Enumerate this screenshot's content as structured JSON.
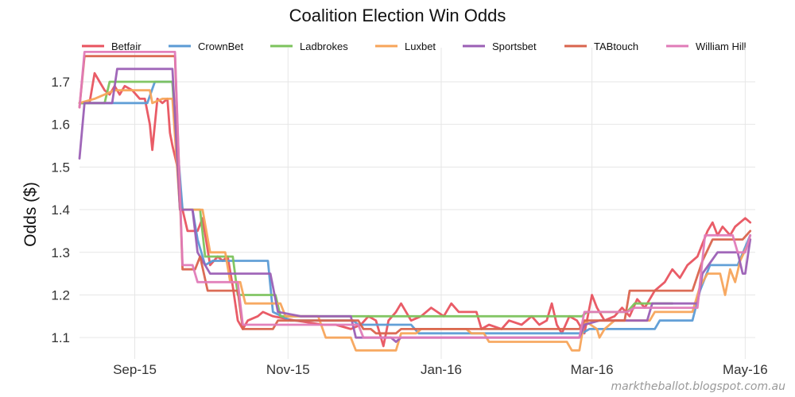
{
  "chart_data": {
    "type": "line",
    "title": "Coalition Election Win Odds",
    "xlabel": "",
    "ylabel": "Odds ($)",
    "credit": "marktheballot.blogspot.com.au",
    "x_range": [
      "2015-08-10",
      "2016-05-05"
    ],
    "ylim": [
      1.05,
      1.78
    ],
    "y_ticks": [
      1.1,
      1.2,
      1.3,
      1.4,
      1.5,
      1.6,
      1.7
    ],
    "x_ticks": [
      {
        "date": "2015-09-01",
        "label": "Sep-15"
      },
      {
        "date": "2015-11-01",
        "label": "Nov-15"
      },
      {
        "date": "2016-01-01",
        "label": "Jan-16"
      },
      {
        "date": "2016-03-01",
        "label": "Mar-16"
      },
      {
        "date": "2016-05-01",
        "label": "May-16"
      }
    ],
    "grid": true,
    "legend_position": "top",
    "series": [
      {
        "name": "Betfair",
        "color": "#e8535f",
        "points": [
          [
            "2015-08-10",
            1.65
          ],
          [
            "2015-08-14",
            1.65
          ],
          [
            "2015-08-16",
            1.72
          ],
          [
            "2015-08-18",
            1.7
          ],
          [
            "2015-08-20",
            1.68
          ],
          [
            "2015-08-22",
            1.67
          ],
          [
            "2015-08-24",
            1.69
          ],
          [
            "2015-08-26",
            1.67
          ],
          [
            "2015-08-28",
            1.69
          ],
          [
            "2015-08-31",
            1.68
          ],
          [
            "2015-09-03",
            1.66
          ],
          [
            "2015-09-05",
            1.66
          ],
          [
            "2015-09-07",
            1.6
          ],
          [
            "2015-09-08",
            1.54
          ],
          [
            "2015-09-10",
            1.66
          ],
          [
            "2015-09-12",
            1.65
          ],
          [
            "2015-09-14",
            1.66
          ],
          [
            "2015-09-15",
            1.58
          ],
          [
            "2015-09-16",
            1.55
          ],
          [
            "2015-09-18",
            1.5
          ],
          [
            "2015-09-20",
            1.4
          ],
          [
            "2015-09-22",
            1.35
          ],
          [
            "2015-09-26",
            1.35
          ],
          [
            "2015-09-28",
            1.38
          ],
          [
            "2015-10-01",
            1.27
          ],
          [
            "2015-10-04",
            1.29
          ],
          [
            "2015-10-06",
            1.28
          ],
          [
            "2015-10-08",
            1.29
          ],
          [
            "2015-10-10",
            1.22
          ],
          [
            "2015-10-12",
            1.14
          ],
          [
            "2015-10-14",
            1.12
          ],
          [
            "2015-10-16",
            1.14
          ],
          [
            "2015-10-20",
            1.15
          ],
          [
            "2015-10-22",
            1.16
          ],
          [
            "2015-10-26",
            1.15
          ],
          [
            "2015-11-04",
            1.14
          ],
          [
            "2015-11-15",
            1.13
          ],
          [
            "2015-11-20",
            1.13
          ],
          [
            "2015-11-26",
            1.12
          ],
          [
            "2015-11-30",
            1.13
          ],
          [
            "2015-12-03",
            1.15
          ],
          [
            "2015-12-06",
            1.14
          ],
          [
            "2015-12-09",
            1.08
          ],
          [
            "2015-12-11",
            1.14
          ],
          [
            "2015-12-14",
            1.16
          ],
          [
            "2015-12-16",
            1.18
          ],
          [
            "2015-12-18",
            1.16
          ],
          [
            "2015-12-20",
            1.14
          ],
          [
            "2015-12-24",
            1.15
          ],
          [
            "2015-12-28",
            1.17
          ],
          [
            "2016-01-02",
            1.15
          ],
          [
            "2016-01-05",
            1.18
          ],
          [
            "2016-01-08",
            1.16
          ],
          [
            "2016-01-15",
            1.16
          ],
          [
            "2016-01-17",
            1.12
          ],
          [
            "2016-01-20",
            1.13
          ],
          [
            "2016-01-25",
            1.12
          ],
          [
            "2016-01-28",
            1.14
          ],
          [
            "2016-02-02",
            1.13
          ],
          [
            "2016-02-06",
            1.15
          ],
          [
            "2016-02-09",
            1.13
          ],
          [
            "2016-02-12",
            1.14
          ],
          [
            "2016-02-14",
            1.18
          ],
          [
            "2016-02-16",
            1.13
          ],
          [
            "2016-02-18",
            1.11
          ],
          [
            "2016-02-21",
            1.15
          ],
          [
            "2016-02-24",
            1.14
          ],
          [
            "2016-02-27",
            1.11
          ],
          [
            "2016-03-01",
            1.2
          ],
          [
            "2016-03-03",
            1.17
          ],
          [
            "2016-03-06",
            1.14
          ],
          [
            "2016-03-10",
            1.15
          ],
          [
            "2016-03-13",
            1.17
          ],
          [
            "2016-03-16",
            1.15
          ],
          [
            "2016-03-19",
            1.19
          ],
          [
            "2016-03-22",
            1.17
          ],
          [
            "2016-03-26",
            1.21
          ],
          [
            "2016-03-30",
            1.23
          ],
          [
            "2016-04-02",
            1.26
          ],
          [
            "2016-04-05",
            1.24
          ],
          [
            "2016-04-08",
            1.27
          ],
          [
            "2016-04-10",
            1.28
          ],
          [
            "2016-04-12",
            1.29
          ],
          [
            "2016-04-14",
            1.32
          ],
          [
            "2016-04-16",
            1.35
          ],
          [
            "2016-04-18",
            1.37
          ],
          [
            "2016-04-20",
            1.34
          ],
          [
            "2016-04-22",
            1.36
          ],
          [
            "2016-04-25",
            1.34
          ],
          [
            "2016-04-27",
            1.36
          ],
          [
            "2016-04-29",
            1.37
          ],
          [
            "2016-05-01",
            1.38
          ],
          [
            "2016-05-03",
            1.37
          ]
        ]
      },
      {
        "name": "CrownBet",
        "color": "#5b9bd5",
        "points": [
          [
            "2015-08-10",
            1.65
          ],
          [
            "2015-09-06",
            1.65
          ],
          [
            "2015-09-09",
            1.7
          ],
          [
            "2015-09-16",
            1.7
          ],
          [
            "2015-09-20",
            1.4
          ],
          [
            "2015-09-24",
            1.4
          ],
          [
            "2015-09-26",
            1.33
          ],
          [
            "2015-09-29",
            1.27
          ],
          [
            "2015-10-02",
            1.28
          ],
          [
            "2015-10-24",
            1.28
          ],
          [
            "2015-10-26",
            1.16
          ],
          [
            "2015-11-02",
            1.14
          ],
          [
            "2015-11-27",
            1.14
          ],
          [
            "2015-11-29",
            1.13
          ],
          [
            "2015-12-20",
            1.13
          ],
          [
            "2015-12-23",
            1.11
          ],
          [
            "2016-02-26",
            1.11
          ],
          [
            "2016-02-29",
            1.12
          ],
          [
            "2016-03-26",
            1.12
          ],
          [
            "2016-03-28",
            1.14
          ],
          [
            "2016-04-10",
            1.14
          ],
          [
            "2016-04-13",
            1.21
          ],
          [
            "2016-04-17",
            1.27
          ],
          [
            "2016-04-28",
            1.27
          ],
          [
            "2016-05-03",
            1.34
          ]
        ]
      },
      {
        "name": "Ladbrokes",
        "color": "#7cc35d",
        "points": [
          [
            "2015-08-10",
            1.65
          ],
          [
            "2015-08-20",
            1.65
          ],
          [
            "2015-08-22",
            1.7
          ],
          [
            "2015-09-16",
            1.7
          ],
          [
            "2015-09-19",
            1.4
          ],
          [
            "2015-09-27",
            1.4
          ],
          [
            "2015-09-29",
            1.29
          ],
          [
            "2015-10-10",
            1.29
          ],
          [
            "2015-10-12",
            1.2
          ],
          [
            "2015-10-27",
            1.2
          ],
          [
            "2015-10-29",
            1.15
          ],
          [
            "2016-02-26",
            1.15
          ],
          [
            "2016-02-28",
            1.16
          ],
          [
            "2016-03-15",
            1.16
          ],
          [
            "2016-03-18",
            1.18
          ],
          [
            "2016-04-02",
            1.18
          ]
        ]
      },
      {
        "name": "Luxbet",
        "color": "#f7a45a",
        "points": [
          [
            "2015-08-10",
            1.65
          ],
          [
            "2015-08-16",
            1.66
          ],
          [
            "2015-08-24",
            1.68
          ],
          [
            "2015-09-07",
            1.68
          ],
          [
            "2015-09-08",
            1.65
          ],
          [
            "2015-09-12",
            1.66
          ],
          [
            "2015-09-16",
            1.66
          ],
          [
            "2015-09-19",
            1.4
          ],
          [
            "2015-09-28",
            1.4
          ],
          [
            "2015-10-01",
            1.3
          ],
          [
            "2015-10-07",
            1.3
          ],
          [
            "2015-10-09",
            1.23
          ],
          [
            "2015-10-13",
            1.23
          ],
          [
            "2015-10-15",
            1.18
          ],
          [
            "2015-10-29",
            1.18
          ],
          [
            "2015-10-31",
            1.15
          ],
          [
            "2015-11-13",
            1.15
          ],
          [
            "2015-11-16",
            1.1
          ],
          [
            "2015-11-26",
            1.1
          ],
          [
            "2015-11-28",
            1.07
          ],
          [
            "2015-12-14",
            1.07
          ],
          [
            "2015-12-16",
            1.11
          ],
          [
            "2015-12-22",
            1.11
          ],
          [
            "2015-12-24",
            1.12
          ],
          [
            "2016-01-11",
            1.12
          ],
          [
            "2016-01-13",
            1.11
          ],
          [
            "2016-01-18",
            1.11
          ],
          [
            "2016-01-20",
            1.09
          ],
          [
            "2016-02-20",
            1.09
          ],
          [
            "2016-02-22",
            1.07
          ],
          [
            "2016-02-25",
            1.07
          ],
          [
            "2016-02-27",
            1.14
          ],
          [
            "2016-03-03",
            1.12
          ],
          [
            "2016-03-04",
            1.1
          ],
          [
            "2016-03-06",
            1.12
          ],
          [
            "2016-03-10",
            1.14
          ],
          [
            "2016-03-24",
            1.14
          ],
          [
            "2016-03-26",
            1.16
          ],
          [
            "2016-04-10",
            1.16
          ],
          [
            "2016-04-13",
            1.22
          ],
          [
            "2016-04-16",
            1.25
          ],
          [
            "2016-04-21",
            1.25
          ],
          [
            "2016-04-23",
            1.2
          ],
          [
            "2016-04-25",
            1.26
          ],
          [
            "2016-04-27",
            1.23
          ],
          [
            "2016-04-29",
            1.28
          ],
          [
            "2016-05-03",
            1.33
          ]
        ]
      },
      {
        "name": "Sportsbet",
        "color": "#9b5fb5",
        "points": [
          [
            "2015-08-10",
            1.52
          ],
          [
            "2015-08-12",
            1.65
          ],
          [
            "2015-08-23",
            1.65
          ],
          [
            "2015-08-25",
            1.73
          ],
          [
            "2015-09-16",
            1.73
          ],
          [
            "2015-09-19",
            1.4
          ],
          [
            "2015-09-24",
            1.4
          ],
          [
            "2015-09-26",
            1.3
          ],
          [
            "2015-09-28",
            1.28
          ],
          [
            "2015-10-01",
            1.25
          ],
          [
            "2015-10-25",
            1.25
          ],
          [
            "2015-10-28",
            1.16
          ],
          [
            "2015-11-06",
            1.15
          ],
          [
            "2015-11-26",
            1.15
          ],
          [
            "2015-11-28",
            1.1
          ],
          [
            "2015-12-12",
            1.1
          ],
          [
            "2015-12-14",
            1.09
          ],
          [
            "2015-12-16",
            1.1
          ],
          [
            "2016-02-25",
            1.1
          ],
          [
            "2016-02-27",
            1.13
          ],
          [
            "2016-03-04",
            1.14
          ],
          [
            "2016-03-23",
            1.14
          ],
          [
            "2016-03-25",
            1.18
          ],
          [
            "2016-04-12",
            1.18
          ],
          [
            "2016-04-14",
            1.25
          ],
          [
            "2016-04-20",
            1.3
          ],
          [
            "2016-04-28",
            1.3
          ],
          [
            "2016-04-30",
            1.25
          ],
          [
            "2016-05-01",
            1.25
          ],
          [
            "2016-05-03",
            1.33
          ]
        ]
      },
      {
        "name": "TABtouch",
        "color": "#d9644d",
        "points": [
          [
            "2015-08-10",
            1.64
          ],
          [
            "2015-08-12",
            1.76
          ],
          [
            "2015-09-17",
            1.76
          ],
          [
            "2015-09-20",
            1.26
          ],
          [
            "2015-09-25",
            1.26
          ],
          [
            "2015-09-27",
            1.29
          ],
          [
            "2015-09-30",
            1.21
          ],
          [
            "2015-10-12",
            1.21
          ],
          [
            "2015-10-14",
            1.12
          ],
          [
            "2015-10-26",
            1.12
          ],
          [
            "2015-10-28",
            1.14
          ],
          [
            "2015-11-29",
            1.14
          ],
          [
            "2015-12-01",
            1.12
          ],
          [
            "2015-12-04",
            1.12
          ],
          [
            "2015-12-06",
            1.11
          ],
          [
            "2015-12-14",
            1.11
          ],
          [
            "2015-12-16",
            1.12
          ],
          [
            "2016-01-12",
            1.12
          ],
          [
            "2016-01-16",
            1.12
          ],
          [
            "2016-01-20",
            1.12
          ],
          [
            "2016-02-25",
            1.12
          ],
          [
            "2016-02-27",
            1.14
          ],
          [
            "2016-03-14",
            1.14
          ],
          [
            "2016-03-16",
            1.21
          ],
          [
            "2016-04-10",
            1.21
          ],
          [
            "2016-04-14",
            1.28
          ],
          [
            "2016-04-18",
            1.33
          ],
          [
            "2016-04-30",
            1.33
          ],
          [
            "2016-05-03",
            1.35
          ]
        ]
      },
      {
        "name": "William Hill",
        "color": "#e07bb8",
        "points": [
          [
            "2015-08-10",
            1.64
          ],
          [
            "2015-08-12",
            1.77
          ],
          [
            "2015-09-17",
            1.77
          ],
          [
            "2015-09-20",
            1.27
          ],
          [
            "2015-09-24",
            1.27
          ],
          [
            "2015-09-26",
            1.23
          ],
          [
            "2015-10-12",
            1.23
          ],
          [
            "2015-10-14",
            1.13
          ],
          [
            "2015-11-29",
            1.13
          ],
          [
            "2015-12-01",
            1.1
          ],
          [
            "2016-02-25",
            1.1
          ],
          [
            "2016-02-27",
            1.16
          ],
          [
            "2016-03-15",
            1.16
          ],
          [
            "2016-03-18",
            1.17
          ],
          [
            "2016-04-12",
            1.17
          ],
          [
            "2016-04-15",
            1.34
          ],
          [
            "2016-04-26",
            1.34
          ],
          [
            "2016-04-28",
            1.3
          ],
          [
            "2016-05-01",
            1.3
          ],
          [
            "2016-05-03",
            1.34
          ]
        ]
      }
    ]
  }
}
